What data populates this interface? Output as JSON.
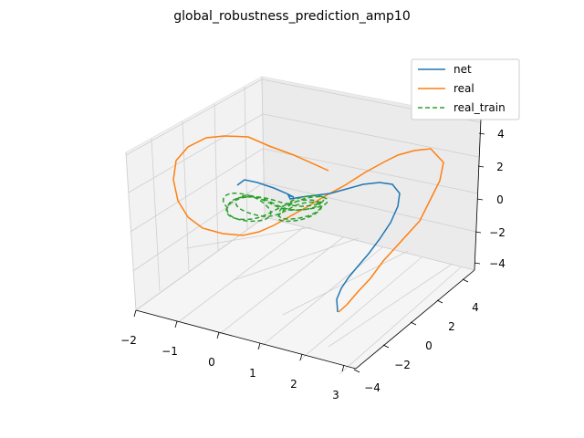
{
  "chart_data": {
    "type": "line",
    "projection": "3d",
    "title": "global_robustness_prediction_amp10",
    "xlabel": "",
    "ylabel": "",
    "zlabel": "",
    "xlim": [
      -2,
      3
    ],
    "ylim": [
      -4,
      5
    ],
    "zlim": [
      -5,
      5
    ],
    "x_ticks": [
      "−2",
      "−1",
      "0",
      "1",
      "2",
      "3"
    ],
    "y_ticks": [
      "−4",
      "−2",
      "0",
      "2",
      "4"
    ],
    "z_ticks": [
      "−4",
      "−2",
      "0",
      "2",
      "4"
    ],
    "grid": true,
    "legend_position": "top-right",
    "series": [
      {
        "name": "net",
        "color": "#1f77b4",
        "style": "solid"
      },
      {
        "name": "real",
        "color": "#ff7f0e",
        "style": "solid"
      },
      {
        "name": "real_train",
        "color": "#2ca02c",
        "style": "dashed"
      }
    ]
  }
}
